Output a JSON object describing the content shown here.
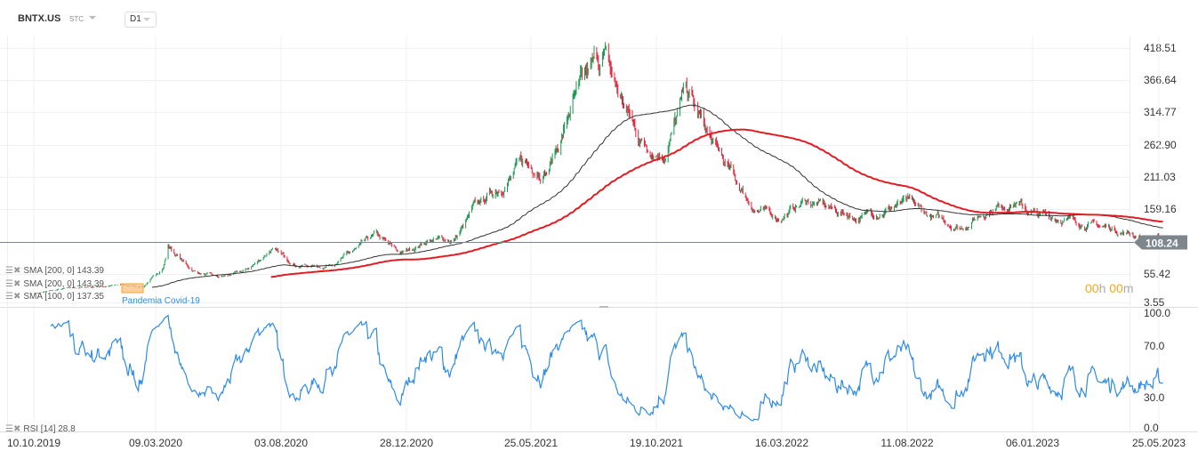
{
  "header": {
    "symbol": "BNTX.US",
    "type": "STC",
    "timeframe": "D1"
  },
  "legend": [
    {
      "label": "SMA [200, 0] 143.39"
    },
    {
      "label": "SMA [200, 0] 143.39"
    },
    {
      "label": "SMA [100, 0] 137.35"
    }
  ],
  "rsi_legend": {
    "label": "RSI [14] 28.8"
  },
  "annotation": {
    "label": "Pandemia Covid-19"
  },
  "timer": {
    "h": "00",
    "hu": "h",
    "m": "00",
    "mu": "m"
  },
  "last_price": "108.24",
  "colors": {
    "up": "#1a9850",
    "down": "#e0213a",
    "sma200": "#e31b23",
    "sma100": "#333333",
    "rsi": "#2e8be6",
    "price_line": "#7d868c"
  },
  "chart_data": [
    {
      "type": "candlestick",
      "title": "BNTX.US D1",
      "y_ticks": [
        "418.51",
        "366.64",
        "314.77",
        "262.90",
        "211.03",
        "159.16",
        "55.42",
        "3.55"
      ],
      "ylim": [
        3.55,
        418.51
      ],
      "x_ticks": [
        "10.10.2019",
        "09.03.2020",
        "03.08.2020",
        "28.12.2020",
        "25.05.2021",
        "19.10.2021",
        "16.03.2022",
        "11.08.2022",
        "06.01.2023",
        "25.05.2023"
      ],
      "approx_monthly_close": [
        [
          "2019-10-10",
          22
        ],
        [
          "2019-11-15",
          29
        ],
        [
          "2019-12-15",
          32
        ],
        [
          "2020-01-15",
          35
        ],
        [
          "2020-02-15",
          33
        ],
        [
          "2020-03-10",
          65
        ],
        [
          "2020-03-16",
          100
        ],
        [
          "2020-04-15",
          58
        ],
        [
          "2020-05-15",
          47
        ],
        [
          "2020-06-15",
          58
        ],
        [
          "2020-07-15",
          94
        ],
        [
          "2020-08-15",
          68
        ],
        [
          "2020-09-15",
          65
        ],
        [
          "2020-10-15",
          86
        ],
        [
          "2020-11-15",
          115
        ],
        [
          "2020-12-15",
          86
        ],
        [
          "2021-01-15",
          108
        ],
        [
          "2021-02-15",
          108
        ],
        [
          "2021-03-10",
          158
        ],
        [
          "2021-04-10",
          194
        ],
        [
          "2021-05-05",
          230
        ],
        [
          "2021-06-05",
          223
        ],
        [
          "2021-07-05",
          330
        ],
        [
          "2021-08-10",
          410
        ],
        [
          "2021-08-25",
          352
        ],
        [
          "2021-09-25",
          266
        ],
        [
          "2021-10-20",
          252
        ],
        [
          "2021-11-15",
          352
        ],
        [
          "2021-12-15",
          266
        ],
        [
          "2022-01-10",
          208
        ],
        [
          "2022-02-05",
          158
        ],
        [
          "2022-03-05",
          144
        ],
        [
          "2022-04-05",
          172
        ],
        [
          "2022-05-05",
          158
        ],
        [
          "2022-06-05",
          144
        ],
        [
          "2022-07-05",
          158
        ],
        [
          "2022-08-01",
          168
        ],
        [
          "2022-09-01",
          144
        ],
        [
          "2022-10-05",
          129
        ],
        [
          "2022-11-05",
          158
        ],
        [
          "2022-12-05",
          172
        ],
        [
          "2023-01-01",
          148
        ],
        [
          "2023-02-01",
          144
        ],
        [
          "2023-03-05",
          134
        ],
        [
          "2023-04-05",
          125
        ],
        [
          "2023-05-25",
          108
        ]
      ],
      "indicators": [
        {
          "name": "SMA 200",
          "last": 143.39
        },
        {
          "name": "SMA 100",
          "last": 137.35
        }
      ]
    },
    {
      "type": "line",
      "title": "RSI [14]",
      "ylim": [
        0,
        100
      ],
      "y_ticks": [
        "100.0",
        "70.0",
        "30.0",
        "0.0"
      ],
      "last": 28.8
    }
  ]
}
